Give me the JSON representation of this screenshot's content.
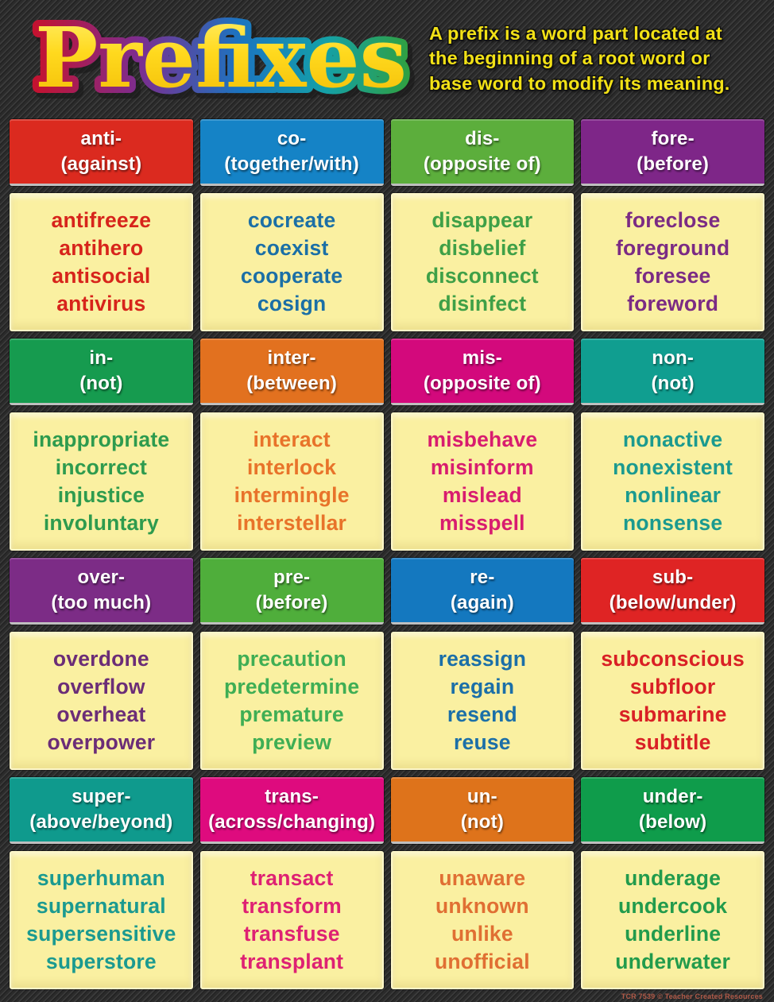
{
  "title": "Prefixes",
  "intro_lines": [
    "A prefix is a word part located at",
    "the beginning of a root word or",
    "base word to modify its meaning."
  ],
  "footer": "TCR 7539 © Teacher Created Resources",
  "colors": {
    "background": "#2b2b2b",
    "cell_background": "#FAF0A1",
    "intro_text": "#F2E116",
    "header_text": "#FFFFFF"
  },
  "grid": {
    "cells": [
      {
        "prefix": "anti-",
        "meaning": "(against)",
        "header_color": "#DB2A1F",
        "word_color": "#D7241B",
        "words": [
          "antifreeze",
          "antihero",
          "antisocial",
          "antivirus"
        ]
      },
      {
        "prefix": "co-",
        "meaning": "(together/with)",
        "header_color": "#1583C6",
        "word_color": "#1B6FA6",
        "words": [
          "cocreate",
          "coexist",
          "cooperate",
          "cosign"
        ]
      },
      {
        "prefix": "dis-",
        "meaning": "(opposite of)",
        "header_color": "#5CAE3C",
        "word_color": "#3FA047",
        "words": [
          "disappear",
          "disbelief",
          "disconnect",
          "disinfect"
        ]
      },
      {
        "prefix": "fore-",
        "meaning": "(before)",
        "header_color": "#7E2688",
        "word_color": "#7B2B84",
        "words": [
          "foreclose",
          "foreground",
          "foresee",
          "foreword"
        ]
      },
      {
        "prefix": "in-",
        "meaning": "(not)",
        "header_color": "#169B4F",
        "word_color": "#2E9B4E",
        "words": [
          "inappropriate",
          "incorrect",
          "injustice",
          "involuntary"
        ]
      },
      {
        "prefix": "inter-",
        "meaning": "(between)",
        "header_color": "#E2711F",
        "word_color": "#E8732A",
        "words": [
          "interact",
          "interlock",
          "intermingle",
          "interstellar"
        ]
      },
      {
        "prefix": "mis-",
        "meaning": "(opposite of)",
        "header_color": "#D3097C",
        "word_color": "#D81C6F",
        "words": [
          "misbehave",
          "misinform",
          "mislead",
          "misspell"
        ]
      },
      {
        "prefix": "non-",
        "meaning": "(not)",
        "header_color": "#109E90",
        "word_color": "#1B9A8F",
        "words": [
          "nonactive",
          "nonexistent",
          "nonlinear",
          "nonsense"
        ]
      },
      {
        "prefix": "over-",
        "meaning": "(too much)",
        "header_color": "#7C2C86",
        "word_color": "#6B2D77",
        "words": [
          "overdone",
          "overflow",
          "overheat",
          "overpower"
        ]
      },
      {
        "prefix": "pre-",
        "meaning": "(before)",
        "header_color": "#4FAE3B",
        "word_color": "#3FAE54",
        "words": [
          "precaution",
          "predetermine",
          "premature",
          "preview"
        ]
      },
      {
        "prefix": "re-",
        "meaning": "(again)",
        "header_color": "#1478BF",
        "word_color": "#1B6FA8",
        "words": [
          "reassign",
          "regain",
          "resend",
          "reuse"
        ]
      },
      {
        "prefix": "sub-",
        "meaning": "(below/under)",
        "header_color": "#DF2424",
        "word_color": "#D92025",
        "words": [
          "subconscious",
          "subfloor",
          "submarine",
          "subtitle"
        ]
      },
      {
        "prefix": "super-",
        "meaning": "(above/beyond)",
        "header_color": "#0F9A8D",
        "word_color": "#1B9A90",
        "words": [
          "superhuman",
          "supernatural",
          "supersensitive",
          "superstore"
        ]
      },
      {
        "prefix": "trans-",
        "meaning": "(across/changing)",
        "header_color": "#DE0B7E",
        "word_color": "#DE2173",
        "words": [
          "transact",
          "transform",
          "transfuse",
          "transplant"
        ]
      },
      {
        "prefix": "un-",
        "meaning": "(not)",
        "header_color": "#DE731B",
        "word_color": "#E06F33",
        "words": [
          "unaware",
          "unknown",
          "unlike",
          "unofficial"
        ]
      },
      {
        "prefix": "under-",
        "meaning": "(below)",
        "header_color": "#0F9C4B",
        "word_color": "#229B4C",
        "words": [
          "underage",
          "undercook",
          "underline",
          "underwater"
        ]
      }
    ]
  }
}
